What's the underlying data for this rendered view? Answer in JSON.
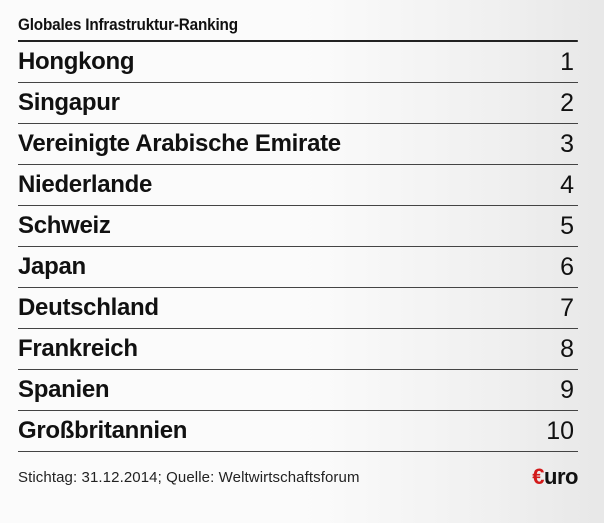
{
  "ranking": {
    "title": "Globales Infrastruktur-Ranking",
    "entries": [
      {
        "name": "Hongkong",
        "rank": "1"
      },
      {
        "name": "Singapur",
        "rank": "2"
      },
      {
        "name": "Vereinigte Arabische Emirate",
        "rank": "3"
      },
      {
        "name": "Niederlande",
        "rank": "4"
      },
      {
        "name": "Schweiz",
        "rank": "5"
      },
      {
        "name": "Japan",
        "rank": "6"
      },
      {
        "name": "Deutschland",
        "rank": "7"
      },
      {
        "name": "Frankreich",
        "rank": "8"
      },
      {
        "name": "Spanien",
        "rank": "9"
      },
      {
        "name": "Großbritannien",
        "rank": "10"
      }
    ],
    "footer": "Stichtag: 31.12.2014; Quelle: Weltwirtschaftsforum"
  },
  "logo": {
    "mark": "€",
    "text": "uro",
    "accent_color": "#d21a1a"
  }
}
